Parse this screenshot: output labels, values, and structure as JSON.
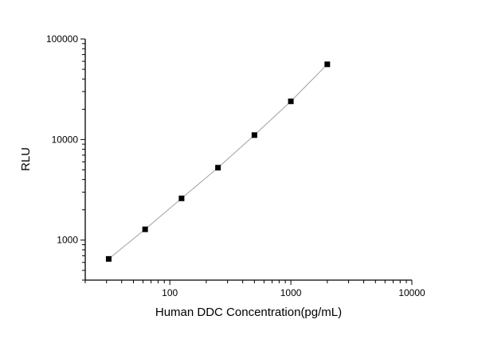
{
  "chart_data": {
    "type": "line",
    "title": "",
    "xlabel": "Human DDC Concentration(pg/mL)",
    "ylabel": "RLU",
    "x_scale": "log",
    "y_scale": "log",
    "xlim": [
      20,
      10000
    ],
    "ylim": [
      400,
      100000
    ],
    "x_ticks": [
      100,
      1000,
      10000
    ],
    "x_tick_labels": [
      "100",
      "1000",
      "10000"
    ],
    "y_ticks": [
      1000,
      10000,
      100000
    ],
    "y_tick_labels": [
      "1000",
      "10000",
      "100000"
    ],
    "grid": false,
    "marker": "square",
    "marker_color": "#000000",
    "line_color": "#a0a0a0",
    "series": [
      {
        "x": [
          31.25,
          62.5,
          125,
          250,
          500,
          1000,
          2000
        ],
        "y": [
          650,
          1280,
          2600,
          5250,
          11070,
          24000,
          56000
        ]
      }
    ]
  }
}
